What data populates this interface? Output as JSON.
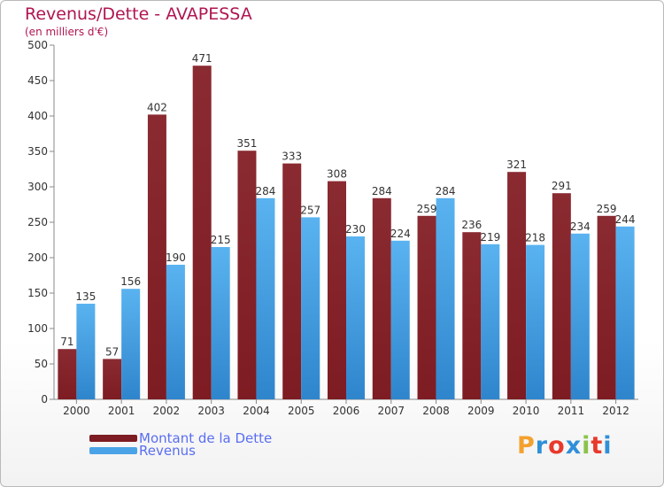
{
  "header": {
    "title": "Revenus/Dette - AVAPESSA",
    "subtitle": "(en milliers d'€)"
  },
  "legend": {
    "debt_label": "Montant de la Dette",
    "revenue_label": "Revenus"
  },
  "brand": {
    "letters": [
      "P",
      "r",
      "o",
      "x",
      "i",
      "t",
      "i"
    ],
    "colors": [
      "#f3a12f",
      "#2f8fd8",
      "#e8392c",
      "#2f8fd8",
      "#8bc34a",
      "#e8392c",
      "#2f8fd8"
    ]
  },
  "colors": {
    "debt": "#7d1c22",
    "revenue": "#4aa3e6"
  },
  "chart_data": {
    "type": "bar",
    "title": "Revenus/Dette - AVAPESSA",
    "subtitle": "(en milliers d'€)",
    "categories": [
      "2000",
      "2001",
      "2002",
      "2003",
      "2004",
      "2005",
      "2006",
      "2007",
      "2008",
      "2009",
      "2010",
      "2011",
      "2012"
    ],
    "series": [
      {
        "name": "Montant de la Dette",
        "values": [
          71,
          57,
          402,
          471,
          351,
          333,
          308,
          284,
          259,
          236,
          321,
          291,
          259
        ]
      },
      {
        "name": "Revenus",
        "values": [
          135,
          156,
          190,
          215,
          284,
          257,
          230,
          224,
          284,
          219,
          218,
          234,
          244
        ]
      }
    ],
    "ylim": [
      0,
      500
    ],
    "yticks": [
      0,
      50,
      100,
      150,
      200,
      250,
      300,
      350,
      400,
      450,
      500
    ],
    "grid": false,
    "legend_position": "bottom-left"
  }
}
